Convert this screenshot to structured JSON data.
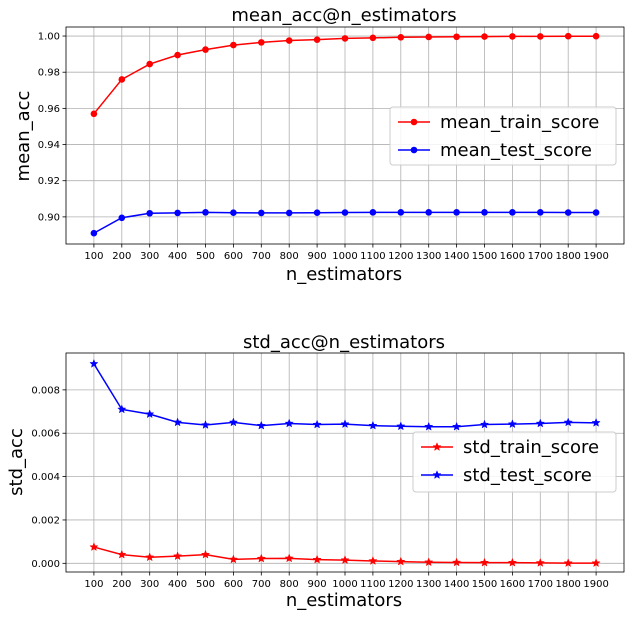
{
  "chart_data": [
    {
      "type": "line",
      "title": "mean_acc@n_estimators",
      "xlabel": "n_estimators",
      "ylabel": "mean_acc",
      "x": [
        100,
        200,
        300,
        400,
        500,
        600,
        700,
        800,
        900,
        1000,
        1100,
        1200,
        1300,
        1400,
        1500,
        1600,
        1700,
        1800,
        1900
      ],
      "xlim": [
        0,
        2000
      ],
      "ylim": [
        0.885,
        1.005
      ],
      "yticks": [
        0.9,
        0.92,
        0.94,
        0.96,
        0.98,
        1.0
      ],
      "ytick_labels": [
        "0.90",
        "0.92",
        "0.94",
        "0.96",
        "0.98",
        "1.00"
      ],
      "grid": true,
      "legend": "center-right",
      "series": [
        {
          "name": "mean_train_score",
          "color": "#ff0000",
          "marker": "circle",
          "values": [
            0.957,
            0.976,
            0.9845,
            0.9895,
            0.9925,
            0.995,
            0.9965,
            0.9975,
            0.998,
            0.9987,
            0.999,
            0.9993,
            0.9995,
            0.9996,
            0.9997,
            0.9998,
            0.9998,
            0.9999,
            0.9999
          ]
        },
        {
          "name": "mean_test_score",
          "color": "#0000ff",
          "marker": "circle",
          "values": [
            0.891,
            0.8995,
            0.902,
            0.9022,
            0.9025,
            0.9023,
            0.9022,
            0.9022,
            0.9023,
            0.9024,
            0.9025,
            0.9025,
            0.9025,
            0.9025,
            0.9025,
            0.9025,
            0.9025,
            0.9024,
            0.9024
          ]
        }
      ]
    },
    {
      "type": "line",
      "title": "std_acc@n_estimators",
      "xlabel": "n_estimators",
      "ylabel": "std_acc",
      "x": [
        100,
        200,
        300,
        400,
        500,
        600,
        700,
        800,
        900,
        1000,
        1100,
        1200,
        1300,
        1400,
        1500,
        1600,
        1700,
        1800,
        1900
      ],
      "xlim": [
        0,
        2000
      ],
      "ylim": [
        -0.0004,
        0.0097
      ],
      "yticks": [
        0.0,
        0.002,
        0.004,
        0.006,
        0.008
      ],
      "ytick_labels": [
        "0.000",
        "0.002",
        "0.004",
        "0.006",
        "0.008"
      ],
      "grid": true,
      "legend": "center-right",
      "series": [
        {
          "name": "std_train_score",
          "color": "#ff0000",
          "marker": "star",
          "values": [
            0.00075,
            0.0004,
            0.00028,
            0.00033,
            0.0004,
            0.00018,
            0.00022,
            0.00023,
            0.00017,
            0.00015,
            0.00011,
            8e-05,
            5e-05,
            4e-05,
            3e-05,
            3e-05,
            2e-05,
            1e-05,
            1e-05
          ]
        },
        {
          "name": "std_test_score",
          "color": "#0000ff",
          "marker": "star",
          "values": [
            0.0092,
            0.0071,
            0.00688,
            0.0065,
            0.00638,
            0.0065,
            0.00635,
            0.00645,
            0.0064,
            0.00642,
            0.00635,
            0.00632,
            0.0063,
            0.0063,
            0.0064,
            0.00642,
            0.00645,
            0.0065,
            0.00648
          ]
        }
      ]
    }
  ]
}
